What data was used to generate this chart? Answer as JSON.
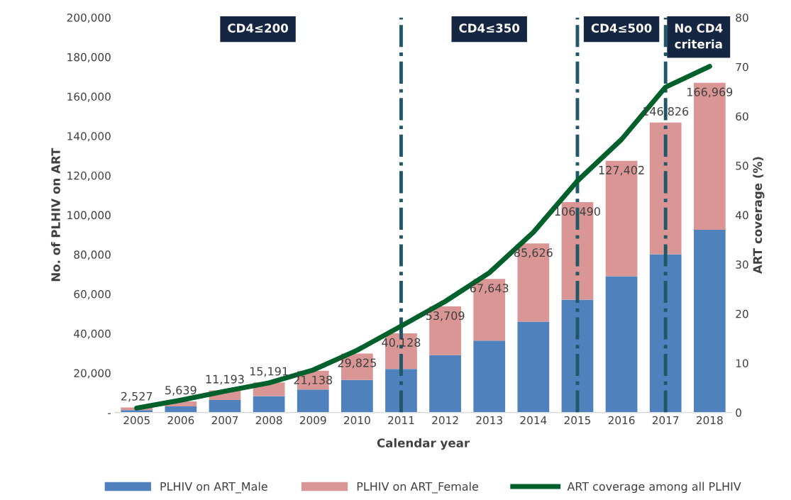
{
  "chart_data": {
    "type": "bar",
    "stacked": true,
    "categories": [
      "2005",
      "2006",
      "2007",
      "2008",
      "2009",
      "2010",
      "2011",
      "2012",
      "2013",
      "2014",
      "2015",
      "2016",
      "2017",
      "2018"
    ],
    "series": [
      {
        "name": "PLHIV on ART_Male",
        "color": "#4f81bd",
        "values": [
          1200,
          3100,
          6300,
          8300,
          11600,
          16500,
          22000,
          29000,
          36400,
          46000,
          57100,
          69000,
          80100,
          92500
        ]
      },
      {
        "name": "PLHIV on ART_Female",
        "color": "#d99694",
        "values": [
          1327,
          2539,
          4893,
          6891,
          9538,
          13325,
          18128,
          24709,
          31243,
          39626,
          49390,
          58402,
          66726,
          74469
        ]
      },
      {
        "name": "ART coverage among all PLHIV",
        "type": "line",
        "axis": "y2",
        "color": "#00602b",
        "values": [
          0.9,
          2.5,
          4.3,
          6.0,
          8.6,
          12.6,
          17.5,
          22.5,
          28.3,
          36.5,
          46.9,
          55.3,
          65.9,
          70.1
        ]
      }
    ],
    "totals": [
      "2,527",
      "5,639",
      "11,193",
      "15,191",
      "21,138",
      "29,825",
      "40,128",
      "53,709",
      "67,643",
      "85,626",
      "106,490",
      "127,402",
      "146,826",
      "166,969"
    ],
    "xlabel": "Calendar year",
    "ylabel": "No. of PLHIV on ART",
    "y2label": "ART coverage (%)",
    "ylim": [
      0,
      200000
    ],
    "yticks": [
      {
        "value": 0,
        "label": "-"
      },
      {
        "value": 20000,
        "label": "20,000"
      },
      {
        "value": 40000,
        "label": "40,000"
      },
      {
        "value": 60000,
        "label": "60,000"
      },
      {
        "value": 80000,
        "label": "80,000"
      },
      {
        "value": 100000,
        "label": "100,000"
      },
      {
        "value": 120000,
        "label": "120,000"
      },
      {
        "value": 140000,
        "label": "140,000"
      },
      {
        "value": 160000,
        "label": "160,000"
      },
      {
        "value": 180000,
        "label": "180,000"
      },
      {
        "value": 200000,
        "label": "200,000"
      }
    ],
    "y2lim": [
      0,
      80
    ],
    "y2ticks": [
      0,
      10,
      20,
      30,
      40,
      50,
      60,
      70,
      80
    ],
    "ref_lines": [
      {
        "axis": "x",
        "value": "2011",
        "color": "#215868",
        "line_style": "dashdot"
      },
      {
        "axis": "x",
        "value": "2015",
        "color": "#215868",
        "line_style": "dashdot"
      },
      {
        "axis": "x",
        "value": "2017",
        "color": "#215868",
        "line_style": "dashdot"
      }
    ],
    "annotations": [
      "CD4≤200",
      "CD4≤350",
      "CD4≤500",
      "No CD4\ncriteria"
    ],
    "grid": false,
    "legend": "bottom"
  }
}
